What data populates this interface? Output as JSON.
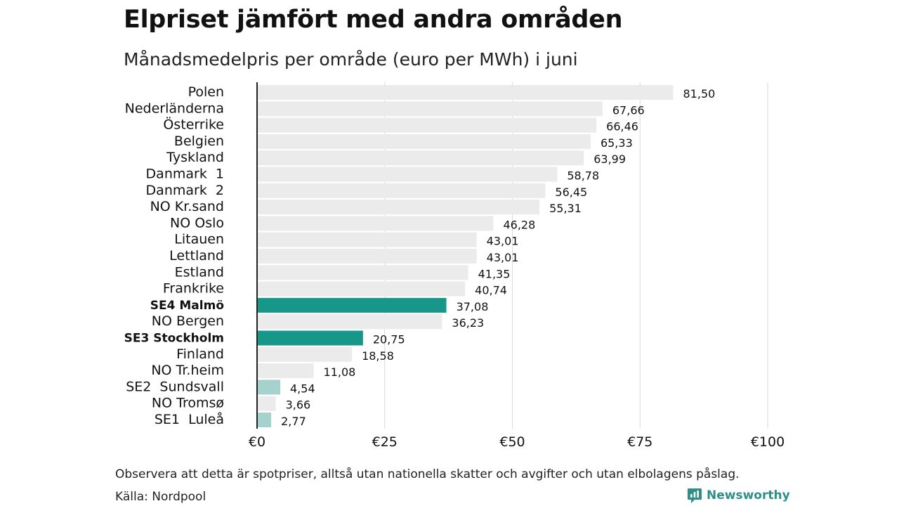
{
  "title": "Elpriset jämfört med andra områden",
  "subtitle": "Månadsmedelpris per område (euro per MWh) i juni",
  "note": "Observera att detta är spotpriser, alltså utan nationella skatter och avgifter och utan elbolagens påslag.",
  "source": "Källa: Nordpool",
  "brand": {
    "name": "Newsworthy",
    "icon": "newsworthy-logo-icon"
  },
  "colors": {
    "default_bar": "#ebebeb",
    "highlight_bar": "#17968a",
    "light_highlight_bar": "#a6d2cd",
    "grid": "#d9d9d9",
    "axis": "#222222",
    "brand": "#2e8f88"
  },
  "chart_data": {
    "type": "bar",
    "orientation": "horizontal",
    "categories": [
      "Polen",
      "Nederländerna",
      "Österrike",
      "Belgien",
      "Tyskland",
      "Danmark  1",
      "Danmark  2",
      "NO Kr.sand",
      "NO Oslo",
      "Litauen",
      "Lettland",
      "Estland",
      "Frankrike",
      "SE4 Malmö",
      "NO Bergen",
      "SE3 Stockholm",
      "Finland",
      "NO Tr.heim",
      "SE2  Sundsvall",
      "NO Tromsø",
      "SE1  Luleå"
    ],
    "values": [
      81.5,
      67.66,
      66.46,
      65.33,
      63.99,
      58.78,
      56.45,
      55.31,
      46.28,
      43.01,
      43.01,
      41.35,
      40.74,
      37.08,
      36.23,
      20.75,
      18.58,
      11.08,
      4.54,
      3.66,
      2.77
    ],
    "value_labels": [
      "81,50",
      "67,66",
      "66,46",
      "65,33",
      "63,99",
      "58,78",
      "56,45",
      "55,31",
      "46,28",
      "43,01",
      "43,01",
      "41,35",
      "40,74",
      "37,08",
      "36,23",
      "20,75",
      "18,58",
      "11,08",
      "4,54",
      "3,66",
      "2,77"
    ],
    "highlight": [
      "none",
      "none",
      "none",
      "none",
      "none",
      "none",
      "none",
      "none",
      "none",
      "none",
      "none",
      "none",
      "none",
      "strong",
      "none",
      "strong",
      "none",
      "none",
      "light",
      "none",
      "light"
    ],
    "bold_labels": [
      "SE4 Malmö",
      "SE3 Stockholm"
    ],
    "xlim": [
      0,
      100
    ],
    "x_ticks": [
      0,
      25,
      50,
      75,
      100
    ],
    "x_tick_labels": [
      "€0",
      "€25",
      "€50",
      "€75",
      "€100"
    ],
    "grid": true
  }
}
